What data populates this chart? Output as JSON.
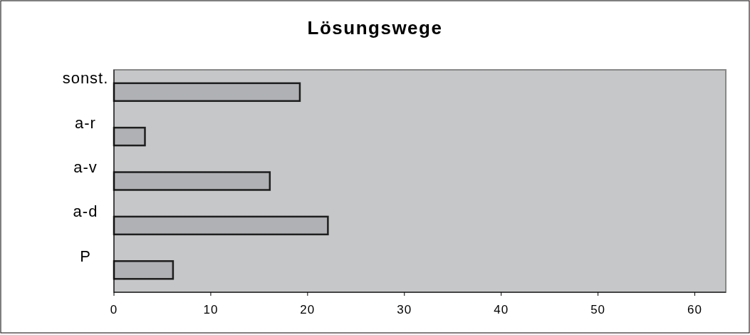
{
  "chart_data": {
    "type": "bar",
    "title": "Lösungswege",
    "orientation": "horizontal",
    "categories": [
      "sonst.",
      "a-r",
      "a-v",
      "a-d",
      "P"
    ],
    "values": [
      19.2,
      3.2,
      16.1,
      22.1,
      6.1
    ],
    "color": "#b0b1b4",
    "xlim": [
      0,
      63.2
    ],
    "xticks": [
      0,
      10,
      20,
      30,
      40,
      50,
      60
    ],
    "grid": false
  }
}
